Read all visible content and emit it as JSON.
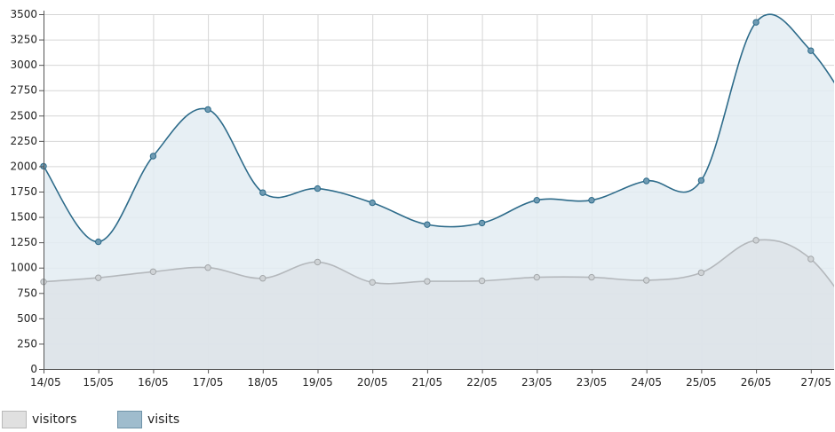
{
  "chart_data": {
    "type": "area",
    "x": [
      "14/05",
      "15/05",
      "16/05",
      "17/05",
      "18/05",
      "19/05",
      "20/05",
      "21/05",
      "22/05",
      "23/05",
      "23/05",
      "24/05",
      "25/05",
      "26/05",
      "27/05"
    ],
    "ylim": [
      0,
      3500
    ],
    "yticks": [
      0,
      250,
      500,
      750,
      1000,
      1250,
      1500,
      1750,
      2000,
      2250,
      2500,
      2750,
      3000,
      3250,
      3500
    ],
    "grid": true,
    "legend": "bottom-left",
    "series": [
      {
        "name": "visitors",
        "color": "#b4b8bc",
        "fill": "#dde3e8",
        "values": [
          860,
          900,
          960,
          1000,
          895,
          1055,
          855,
          865,
          870,
          905,
          905,
          875,
          950,
          1270,
          1085
        ]
      },
      {
        "name": "visits",
        "color": "#2d6b8a",
        "fill": "#e3ecf2",
        "values": [
          2000,
          1255,
          2100,
          2560,
          1740,
          1780,
          1640,
          1425,
          1440,
          1665,
          1665,
          1855,
          1860,
          3420,
          3140
        ]
      }
    ]
  }
}
